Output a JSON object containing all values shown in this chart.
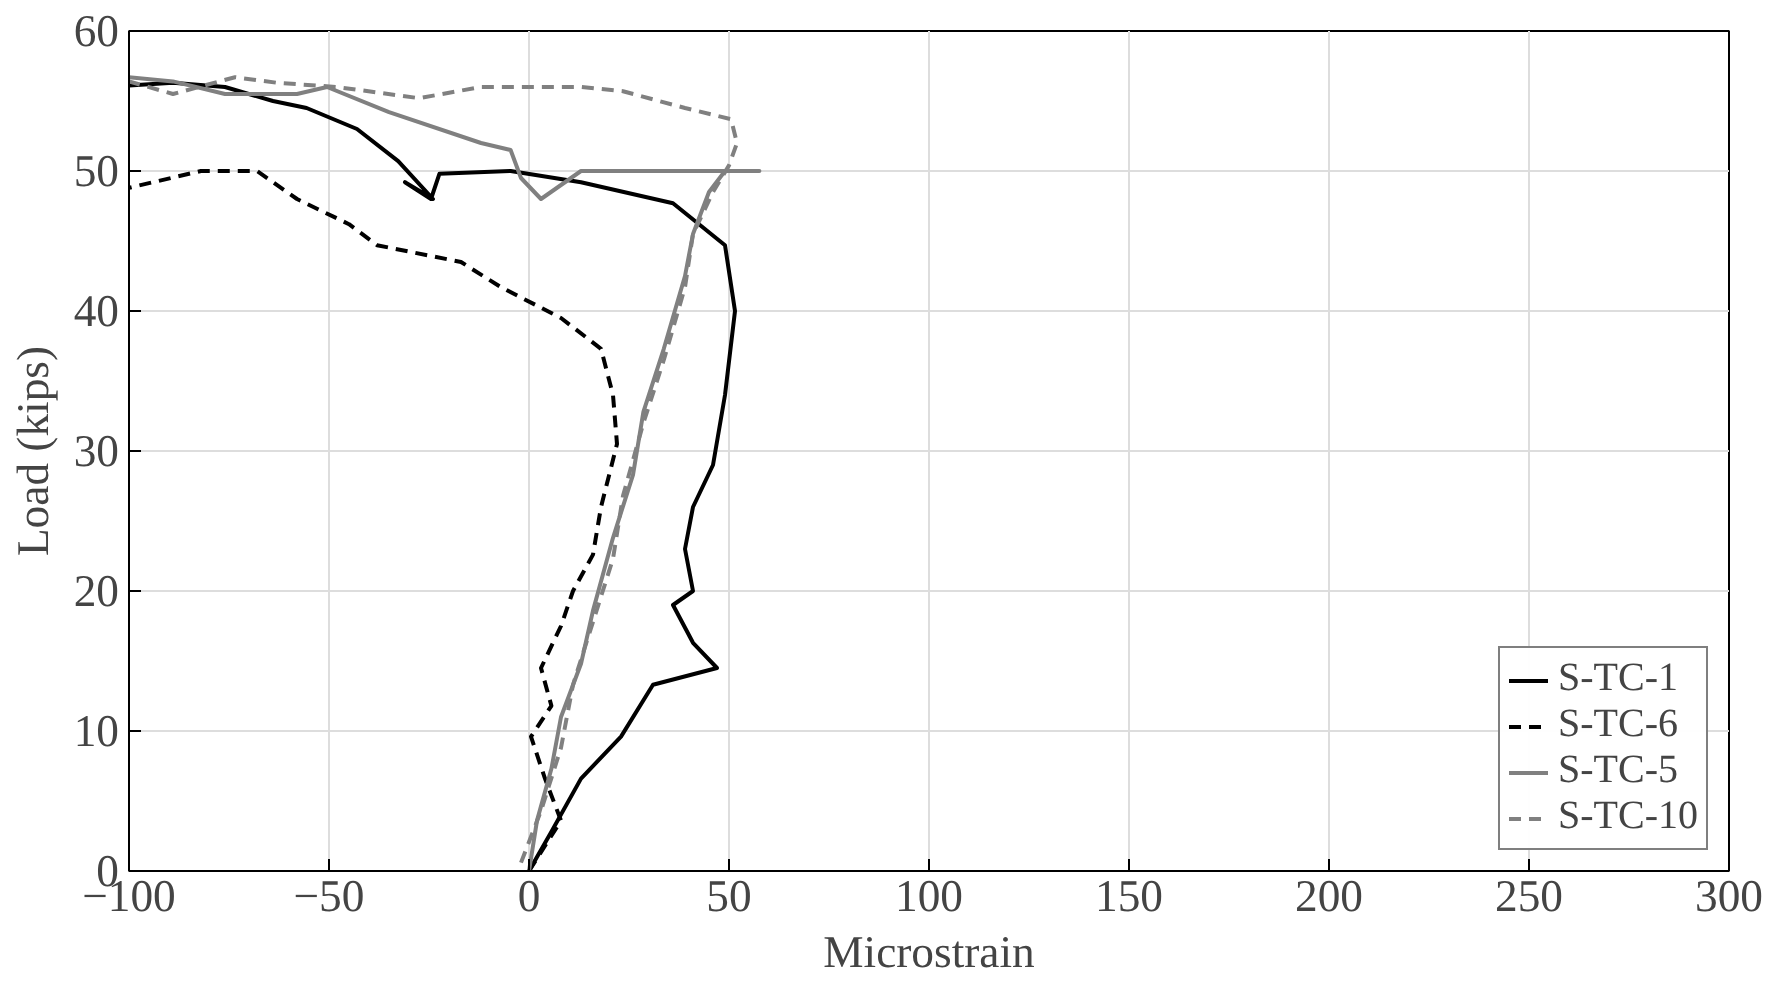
{
  "chart_data": {
    "type": "line",
    "xlabel": "Microstrain",
    "ylabel": "Load (kips)",
    "xlim": [
      -100,
      300
    ],
    "ylim": [
      0,
      60
    ],
    "xticks": [
      -100,
      -50,
      0,
      50,
      100,
      150,
      200,
      250,
      300
    ],
    "yticks": [
      0,
      10,
      20,
      30,
      40,
      50,
      60
    ],
    "grid": true,
    "legend": "bottom right",
    "series": [
      {
        "name": "S-TC-1",
        "color": "#000000",
        "line_style": "solid",
        "x": [
          0,
          5.6,
          13,
          23,
          31,
          47,
          41,
          36,
          41,
          39,
          41,
          46,
          49,
          51.5,
          49,
          36,
          13,
          -4.6,
          -22.4,
          -24.5,
          -31,
          -24,
          -32.7,
          -43,
          -55.6,
          -64,
          -76,
          -89,
          -100
        ],
        "values": [
          0,
          2.8,
          6.6,
          9.6,
          13.3,
          14.5,
          16.3,
          19,
          20,
          23,
          26,
          29,
          34,
          40,
          44.7,
          47.7,
          49.2,
          50,
          49.8,
          48,
          49.2,
          48,
          50.7,
          53,
          54.5,
          55,
          56,
          56.3,
          56.1
        ]
      },
      {
        "name": "S-TC-6",
        "color": "#000000",
        "line_style": "dashed",
        "x": [
          0,
          8,
          4,
          0.5,
          5.6,
          3,
          8,
          11,
          16,
          18,
          22,
          21,
          18,
          8,
          -7,
          -17,
          -38,
          -45,
          -58,
          -68,
          -82,
          -94,
          -100
        ],
        "values": [
          0,
          3.6,
          6.6,
          9.6,
          11.8,
          14.5,
          17.5,
          20,
          22.6,
          26,
          30.5,
          34,
          37.3,
          39.5,
          41.7,
          43.5,
          44.7,
          46.2,
          48,
          50,
          50,
          49.2,
          48.8
        ]
      },
      {
        "name": "S-TC-5",
        "color": "#808080",
        "line_style": "solid",
        "x": [
          0,
          2,
          5.6,
          8,
          13,
          16,
          21,
          26,
          28.6,
          33.7,
          39,
          41,
          45,
          49,
          57.6,
          13,
          3,
          -2,
          -4.6,
          -12,
          -35,
          -50.5,
          -58,
          -76,
          -89,
          -100
        ],
        "values": [
          0,
          3.6,
          7.3,
          11,
          14.8,
          18.6,
          23.8,
          28.3,
          32.8,
          37.3,
          42.5,
          45.5,
          48.5,
          50,
          50,
          50,
          48,
          49.5,
          51.5,
          52,
          54.2,
          56,
          55.5,
          55.5,
          56.4,
          56.7
        ]
      },
      {
        "name": "S-TC-10",
        "color": "#808080",
        "line_style": "dashed",
        "x": [
          -2,
          3,
          8,
          11,
          16,
          21,
          23.5,
          28.6,
          33.7,
          39,
          41,
          46,
          50,
          52,
          50.5,
          39,
          23.5,
          13,
          -12,
          -27.5,
          -48,
          -63,
          -73.5,
          -89,
          -100
        ],
        "values": [
          0.6,
          4.3,
          8.8,
          13.3,
          17.8,
          22.3,
          26.8,
          32,
          36.5,
          41.7,
          45.5,
          48.5,
          50.4,
          52,
          53.7,
          54.5,
          55.7,
          56,
          56,
          55.2,
          56,
          56.3,
          56.7,
          55.5,
          56.4
        ]
      }
    ]
  }
}
